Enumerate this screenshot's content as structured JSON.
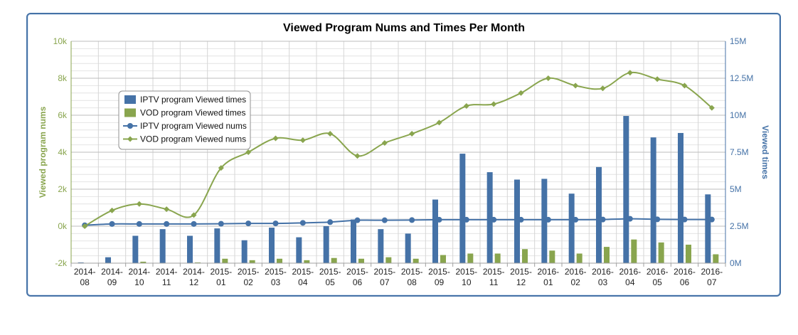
{
  "chart_data": {
    "type": "bar",
    "title": "Viewed Program Nums and Times Per Month",
    "categories": [
      [
        "2014-",
        "08"
      ],
      [
        "2014-",
        "09"
      ],
      [
        "2014-",
        "10"
      ],
      [
        "2014-",
        "11"
      ],
      [
        "2014-",
        "12"
      ],
      [
        "2015-",
        "01"
      ],
      [
        "2015-",
        "02"
      ],
      [
        "2015-",
        "03"
      ],
      [
        "2015-",
        "04"
      ],
      [
        "2015-",
        "05"
      ],
      [
        "2015-",
        "06"
      ],
      [
        "2015-",
        "07"
      ],
      [
        "2015-",
        "08"
      ],
      [
        "2015-",
        "09"
      ],
      [
        "2015-",
        "10"
      ],
      [
        "2015-",
        "11"
      ],
      [
        "2015-",
        "12"
      ],
      [
        "2016-",
        "01"
      ],
      [
        "2016-",
        "02"
      ],
      [
        "2016-",
        "03"
      ],
      [
        "2016-",
        "04"
      ],
      [
        "2016-",
        "05"
      ],
      [
        "2016-",
        "06"
      ],
      [
        "2016-",
        "07"
      ]
    ],
    "y_left": {
      "label": "Viewed program nums",
      "min": -2000,
      "max": 10000,
      "step": 2000,
      "ticks": [
        "-2k",
        "0k",
        "2k",
        "4k",
        "6k",
        "8k",
        "10k"
      ],
      "color": "#89a54e"
    },
    "y_right": {
      "label": "Viewed times",
      "min": 0,
      "max": 15000000,
      "step": 2500000,
      "ticks": [
        "0M",
        "2.5M",
        "5M",
        "7.5M",
        "10M",
        "12.5M",
        "15M"
      ],
      "color": "#4572a7"
    },
    "grid": true,
    "legend_position": "left-middle",
    "series": [
      {
        "name": "IPTV program Viewed times",
        "kind": "bar",
        "axis": "right",
        "color": "#4572a7",
        "values": [
          50000,
          400000,
          1850000,
          2300000,
          1850000,
          2350000,
          1550000,
          2400000,
          1750000,
          2500000,
          2950000,
          2300000,
          2000000,
          4300000,
          7400000,
          6150000,
          5650000,
          5700000,
          4700000,
          6500000,
          9950000,
          8500000,
          8800000,
          4650000
        ]
      },
      {
        "name": "VOD program Viewed times",
        "kind": "bar",
        "axis": "right",
        "color": "#89a54e",
        "values": [
          0,
          0,
          100000,
          0,
          50000,
          300000,
          200000,
          300000,
          200000,
          350000,
          300000,
          400000,
          300000,
          550000,
          650000,
          650000,
          950000,
          850000,
          650000,
          1100000,
          1600000,
          1400000,
          1250000,
          600000
        ]
      },
      {
        "name": "IPTV program Viewed nums",
        "kind": "line",
        "axis": "left",
        "color": "#4572a7",
        "marker": "circle",
        "values": [
          50,
          120,
          120,
          120,
          120,
          130,
          150,
          150,
          180,
          220,
          320,
          320,
          330,
          350,
          350,
          350,
          350,
          350,
          350,
          360,
          400,
          370,
          360,
          360
        ]
      },
      {
        "name": "VOD program Viewed nums",
        "kind": "line",
        "axis": "left",
        "color": "#89a54e",
        "marker": "diamond",
        "values": [
          0,
          850,
          1200,
          920,
          600,
          3150,
          4000,
          4750,
          4650,
          5000,
          3800,
          4500,
          5000,
          5600,
          6500,
          6600,
          7200,
          8000,
          7600,
          7450,
          8300,
          7950,
          7600,
          6400
        ]
      }
    ]
  }
}
